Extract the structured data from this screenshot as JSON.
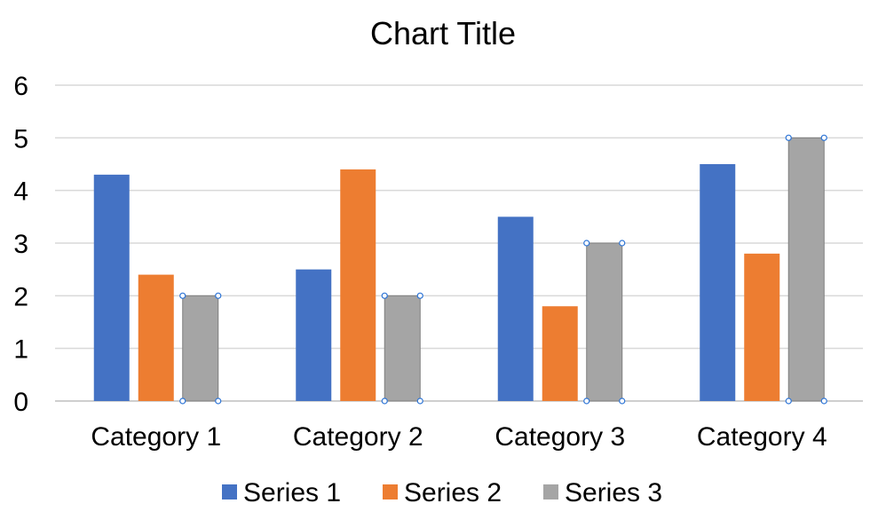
{
  "chart_data": {
    "type": "bar",
    "title": "Chart Title",
    "categories": [
      "Category 1",
      "Category 2",
      "Category 3",
      "Category 4"
    ],
    "series": [
      {
        "name": "Series 1",
        "values": [
          4.3,
          2.5,
          3.5,
          4.5
        ],
        "color": "#4472C4"
      },
      {
        "name": "Series 2",
        "values": [
          2.4,
          4.4,
          1.8,
          2.8
        ],
        "color": "#ED7D31"
      },
      {
        "name": "Series 3",
        "values": [
          2,
          2,
          3,
          5
        ],
        "color": "#A5A5A5"
      }
    ],
    "ylim": [
      0,
      6
    ],
    "yticks": [
      0,
      1,
      2,
      3,
      4,
      5,
      6
    ],
    "grid": true,
    "legend": "bottom",
    "selected_series": "Series 3"
  }
}
